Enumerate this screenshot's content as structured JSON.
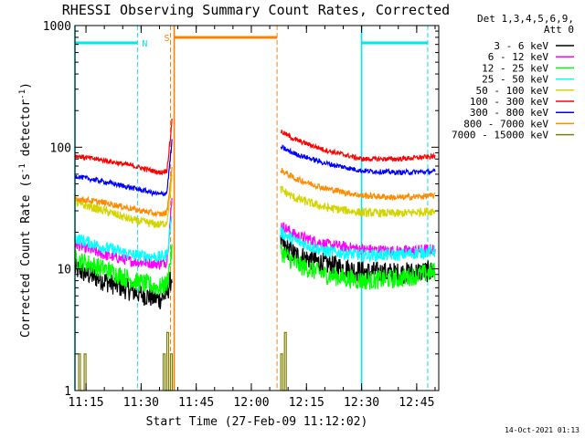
{
  "chart_data": {
    "type": "line",
    "title": "RHESSI Observing Summary Count Rates, Corrected",
    "xlabel": "Start Time (27-Feb-09 11:12:02)",
    "ylabel_main": "Corrected Count Rate (s",
    "ylabel_sup1": "-1",
    "ylabel_mid": " detector",
    "ylabel_sup2": "-1",
    "ylabel_end": ")",
    "footer_timestamp": "14-Oct-2021 01:13",
    "y_scale": "log",
    "ylim": [
      1,
      1000
    ],
    "xlim": [
      "11:12",
      "12:51"
    ],
    "x_ticks": [
      "11:15",
      "11:30",
      "11:45",
      "12:00",
      "12:15",
      "12:30",
      "12:45"
    ],
    "y_ticks": [
      "1",
      "10",
      "100",
      "1000"
    ],
    "legend": {
      "header_line1": "Det 1,3,4,5,6,9,",
      "header_line2": "Att 0",
      "placement": "top-right outside",
      "entries": [
        {
          "label": "3 - 6 keV",
          "color": "#000000"
        },
        {
          "label": "6 - 12 keV",
          "color": "#ff00ff"
        },
        {
          "label": "12 - 25 keV",
          "color": "#00ff00"
        },
        {
          "label": "25 - 50 keV",
          "color": "#00ffff"
        },
        {
          "label": "50 - 100 keV",
          "color": "#d4d400"
        },
        {
          "label": "100 - 300 keV",
          "color": "#ff0000"
        },
        {
          "label": "300 - 800 keV",
          "color": "#0000ff"
        },
        {
          "label": "800 - 7000 keV",
          "color": "#ff8c00"
        },
        {
          "label": "7000 - 15000 keV",
          "color": "#808000"
        }
      ]
    },
    "flags": {
      "night": {
        "label": "N",
        "color": "#00e5ee",
        "intervals": [
          [
            "11:12",
            "11:29"
          ],
          [
            "12:30",
            "12:48"
          ]
        ]
      },
      "saa": {
        "label": "S",
        "color": "#ff8000",
        "intervals": [
          [
            "11:39",
            "12:07"
          ]
        ]
      }
    },
    "vertical_markers": [
      {
        "time": "11:12",
        "color": "#00e5ee",
        "style": "solid"
      },
      {
        "time": "11:29",
        "color": "#00e5ee",
        "style": "dashed"
      },
      {
        "time": "11:38",
        "color": "#ff8000",
        "style": "dashed"
      },
      {
        "time": "11:39",
        "color": "#ff8000",
        "style": "solid"
      },
      {
        "time": "12:07",
        "color": "#ff8000",
        "style": "dashed"
      },
      {
        "time": "12:30",
        "color": "#00e5ee",
        "style": "solid"
      },
      {
        "time": "12:48",
        "color": "#00e5ee",
        "style": "dashed"
      }
    ],
    "series": [
      {
        "name": "3 - 6 keV",
        "color": "#000000",
        "noise": 0.09,
        "segments": [
          [
            [
              "11:12",
              10
            ],
            [
              "11:20",
              8
            ],
            [
              "11:28",
              6.5
            ],
            [
              "11:35",
              5.6
            ],
            [
              "11:37",
              6.2
            ],
            [
              "11:38.5",
              9
            ]
          ],
          [
            [
              "12:08",
              16
            ],
            [
              "12:12",
              13
            ],
            [
              "12:20",
              11
            ],
            [
              "12:30",
              9.5
            ],
            [
              "12:40",
              9.2
            ],
            [
              "12:50",
              9.6
            ]
          ]
        ]
      },
      {
        "name": "6 - 12 keV",
        "color": "#ff00ff",
        "noise": 0.045,
        "segments": [
          [
            [
              "11:12",
              16
            ],
            [
              "11:20",
              13
            ],
            [
              "11:28",
              11.5
            ],
            [
              "11:35",
              11
            ],
            [
              "11:37",
              11.5
            ],
            [
              "11:38.5",
              40
            ]
          ],
          [
            [
              "12:08",
              23
            ],
            [
              "12:12",
              19
            ],
            [
              "12:20",
              16
            ],
            [
              "12:30",
              14.5
            ],
            [
              "12:40",
              14
            ],
            [
              "12:50",
              14.5
            ]
          ]
        ]
      },
      {
        "name": "12 - 25 keV",
        "color": "#00ff00",
        "noise": 0.08,
        "segments": [
          [
            [
              "11:12",
              12
            ],
            [
              "11:20",
              10
            ],
            [
              "11:28",
              8
            ],
            [
              "11:35",
              7
            ],
            [
              "11:37",
              7.5
            ],
            [
              "11:38.5",
              15
            ]
          ],
          [
            [
              "12:08",
              14
            ],
            [
              "12:12",
              11
            ],
            [
              "12:20",
              9
            ],
            [
              "12:30",
              8
            ],
            [
              "12:40",
              8.3
            ],
            [
              "12:50",
              9.5
            ]
          ]
        ]
      },
      {
        "name": "25 - 50 keV",
        "color": "#00ffff",
        "noise": 0.05,
        "segments": [
          [
            [
              "11:12",
              18
            ],
            [
              "11:20",
              15
            ],
            [
              "11:28",
              13
            ],
            [
              "11:35",
              12.5
            ],
            [
              "11:37",
              13
            ],
            [
              "11:38.5",
              30
            ]
          ],
          [
            [
              "12:08",
              20
            ],
            [
              "12:12",
              17
            ],
            [
              "12:20",
              14
            ],
            [
              "12:30",
              13
            ],
            [
              "12:40",
              13
            ],
            [
              "12:50",
              14
            ]
          ]
        ]
      },
      {
        "name": "50 - 100 keV",
        "color": "#d4d400",
        "noise": 0.035,
        "segments": [
          [
            [
              "11:12",
              35
            ],
            [
              "11:20",
              30
            ],
            [
              "11:28",
              25
            ],
            [
              "11:35",
              23
            ],
            [
              "11:37",
              24
            ],
            [
              "11:38.5",
              60
            ]
          ],
          [
            [
              "12:08",
              45
            ],
            [
              "12:12",
              38
            ],
            [
              "12:20",
              32
            ],
            [
              "12:30",
              29
            ],
            [
              "12:40",
              28.5
            ],
            [
              "12:50",
              30
            ]
          ]
        ]
      },
      {
        "name": "100 - 300 keV",
        "color": "#ff0000",
        "noise": 0.02,
        "segments": [
          [
            [
              "11:12",
              85
            ],
            [
              "11:20",
              78
            ],
            [
              "11:28",
              70
            ],
            [
              "11:35",
              62
            ],
            [
              "11:37",
              64
            ],
            [
              "11:38",
              120
            ],
            [
              "11:38.5",
              190
            ]
          ],
          [
            [
              "12:08",
              135
            ],
            [
              "12:12",
              115
            ],
            [
              "12:20",
              95
            ],
            [
              "12:30",
              80
            ],
            [
              "12:40",
              80
            ],
            [
              "12:50",
              84
            ]
          ]
        ]
      },
      {
        "name": "300 - 800 keV",
        "color": "#0000ff",
        "noise": 0.02,
        "segments": [
          [
            [
              "11:12",
              58
            ],
            [
              "11:20",
              52
            ],
            [
              "11:28",
              46
            ],
            [
              "11:35",
              41
            ],
            [
              "11:37",
              42
            ],
            [
              "11:38.5",
              120
            ]
          ],
          [
            [
              "12:08",
              100
            ],
            [
              "12:12",
              88
            ],
            [
              "12:20",
              74
            ],
            [
              "12:30",
              64
            ],
            [
              "12:40",
              62
            ],
            [
              "12:50",
              63
            ]
          ]
        ]
      },
      {
        "name": "800 - 7000 keV",
        "color": "#ff8c00",
        "noise": 0.025,
        "segments": [
          [
            [
              "11:12",
              38
            ],
            [
              "11:20",
              35
            ],
            [
              "11:28",
              31
            ],
            [
              "11:35",
              28
            ],
            [
              "11:37",
              29
            ],
            [
              "11:38.5",
              70
            ]
          ],
          [
            [
              "12:08",
              65
            ],
            [
              "12:12",
              55
            ],
            [
              "12:20",
              46
            ],
            [
              "12:30",
              40
            ],
            [
              "12:40",
              38.5
            ],
            [
              "12:50",
              40
            ]
          ]
        ]
      },
      {
        "name": "7000 - 15000 keV",
        "color": "#808000",
        "noise": 0,
        "segments": [
          [
            [
              "11:13",
              1
            ],
            [
              "11:13",
              2
            ],
            [
              "11:13.5",
              2
            ],
            [
              "11:13.5",
              1
            ],
            [
              "11:14.5",
              1
            ],
            [
              "11:14.5",
              2
            ],
            [
              "11:15",
              2
            ],
            [
              "11:15",
              1
            ]
          ],
          [
            [
              "11:36",
              1
            ],
            [
              "11:36",
              2
            ],
            [
              "11:36.5",
              2
            ],
            [
              "11:36.5",
              1
            ],
            [
              "11:37",
              1
            ],
            [
              "11:37",
              3
            ],
            [
              "11:37.5",
              3
            ],
            [
              "11:37.5",
              1
            ],
            [
              "11:38",
              1
            ],
            [
              "11:38",
              2
            ],
            [
              "11:38.5",
              2
            ],
            [
              "11:38.5",
              1
            ]
          ],
          [
            [
              "12:08",
              1
            ],
            [
              "12:08",
              2
            ],
            [
              "12:08.5",
              2
            ],
            [
              "12:08.5",
              1
            ],
            [
              "12:09",
              1
            ],
            [
              "12:09",
              3
            ],
            [
              "12:09.5",
              3
            ],
            [
              "12:09.5",
              1
            ]
          ]
        ]
      }
    ]
  }
}
